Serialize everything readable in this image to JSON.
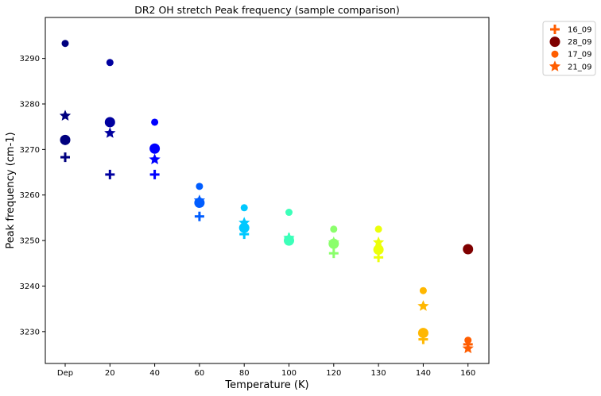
{
  "chart_data": {
    "type": "scatter",
    "title": "DR2 OH stretch Peak frequency (sample comparison)",
    "xlabel": "Temperature (K)",
    "ylabel": "Peak frequency (cm-1)",
    "categories": [
      "Dep",
      "20",
      "40",
      "60",
      "80",
      "100",
      "120",
      "130",
      "140",
      "160"
    ],
    "ylim": [
      3223,
      3299
    ],
    "yticks": [
      3230,
      3240,
      3250,
      3260,
      3270,
      3280,
      3290
    ],
    "grid": false,
    "legend_position": "outside-top-right",
    "colormap": [
      "#00007f",
      "#00009f",
      "#0000ff",
      "#005dff",
      "#00c8ff",
      "#3cffb9",
      "#8bff6c",
      "#ecff0a",
      "#ffb700",
      "#ff5d00"
    ],
    "series": [
      {
        "name": "16_09",
        "marker": "plus",
        "legend_color": "#ff5d00",
        "values": [
          3268.3,
          3264.5,
          3264.5,
          3255.3,
          3251.4,
          3250.5,
          3247.2,
          3246.3,
          3228.3,
          3227.2
        ]
      },
      {
        "name": "28_09",
        "marker": "circle-large",
        "legend_color": "#7f0000",
        "values": [
          3272.1,
          3276.0,
          3270.2,
          3258.3,
          3252.8,
          3250.0,
          3249.3,
          3248.0,
          3229.7,
          null
        ]
      },
      {
        "name": "17_09",
        "marker": "circle-small",
        "legend_color": "#ff5d00",
        "values": [
          3293.3,
          3289.1,
          3276.0,
          3261.9,
          3257.2,
          3256.2,
          3252.5,
          3252.5,
          3239.0,
          3228.1
        ]
      },
      {
        "name": "21_09",
        "marker": "star",
        "legend_color": "#ff5d00",
        "values": [
          3277.4,
          3273.6,
          3267.8,
          3258.8,
          3253.9,
          3250.6,
          3249.6,
          3249.6,
          3235.6,
          3226.3
        ]
      }
    ],
    "extra_points": [
      {
        "series": "28_09",
        "category": "160",
        "value": 3248.1,
        "color": "#7f0000",
        "marker": "circle-large"
      }
    ]
  }
}
